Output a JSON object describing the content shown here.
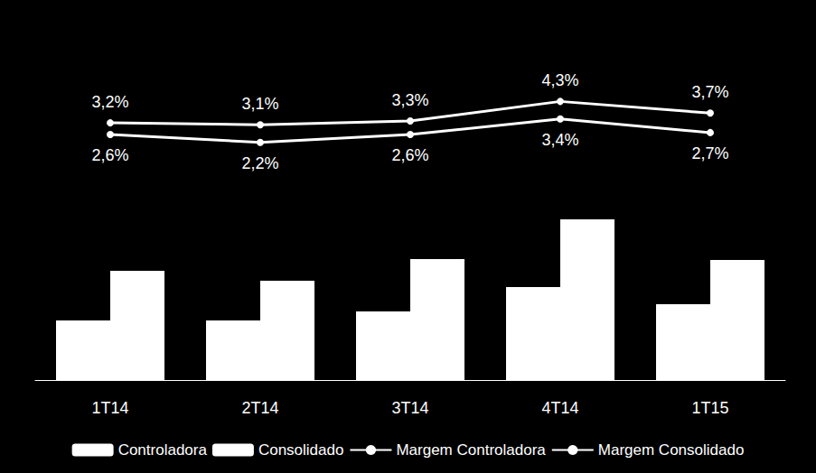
{
  "chart_data": {
    "type": "bar",
    "categories": [
      "1T14",
      "2T14",
      "3T14",
      "4T14",
      "1T15"
    ],
    "series": [
      {
        "name": "Controladora",
        "type": "bar",
        "color": "#ffffff",
        "values": [
          66,
          66,
          76,
          103,
          84
        ]
      },
      {
        "name": "Consolidado",
        "type": "bar",
        "color": "#ffffff",
        "values": [
          121,
          110,
          134,
          178,
          133
        ]
      },
      {
        "name": "Margem Controladora",
        "type": "line",
        "axis": "y2",
        "color": "#ffffff",
        "marker": "circle",
        "values": [
          3.2,
          3.1,
          3.3,
          4.3,
          3.7
        ],
        "value_labels": [
          "3,2%",
          "3,1%",
          "3,3%",
          "4,3%",
          "3,7%"
        ]
      },
      {
        "name": "Margem Consolidado",
        "type": "line",
        "axis": "y2",
        "color": "#ffffff",
        "marker": "circle",
        "values": [
          2.6,
          2.2,
          2.6,
          3.4,
          2.7
        ],
        "value_labels": [
          "2,6%",
          "2,2%",
          "2,6%",
          "3,4%",
          "2,7%"
        ]
      }
    ],
    "ylim": [
      0,
      341
    ],
    "y2lim": [
      -10,
      5.8
    ],
    "tick_labels": "x",
    "data_labels": true,
    "legend": "bottom",
    "grid": false
  }
}
